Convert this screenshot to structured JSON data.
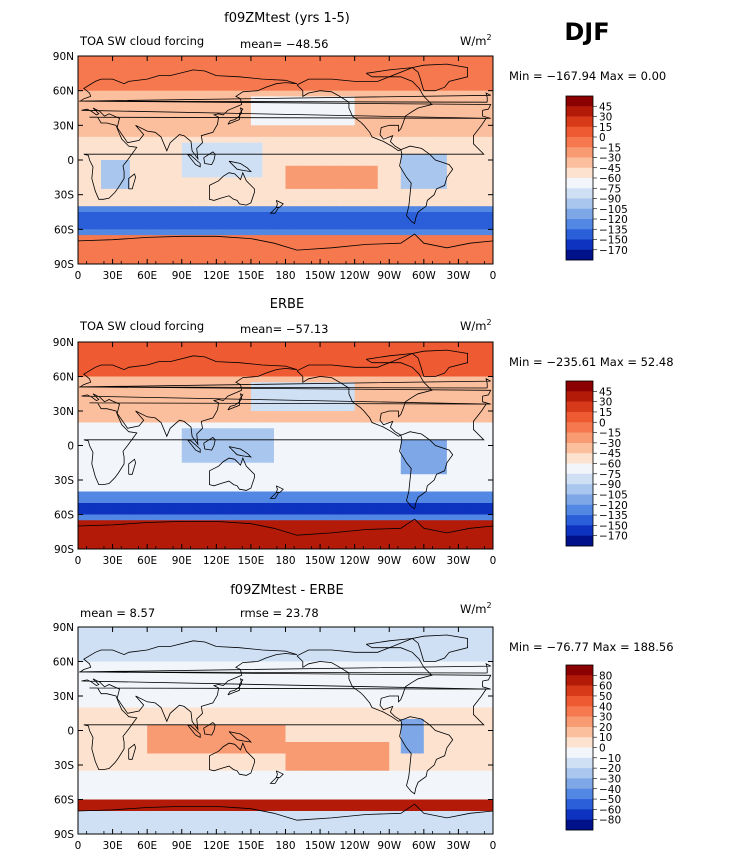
{
  "season": "DJF",
  "y_ticks": [
    "90N",
    "60N",
    "30N",
    "0",
    "30S",
    "60S",
    "90S"
  ],
  "x_ticks": [
    "0",
    "30E",
    "60E",
    "90E",
    "120E",
    "150E",
    "180",
    "150W",
    "120W",
    "90W",
    "60W",
    "30W",
    "0"
  ],
  "panels": [
    {
      "title": "f09ZMtest (yrs 1-5)",
      "left_label": "TOA SW cloud forcing",
      "center_label": "mean=  −48.56",
      "units_base": "W/m",
      "units_sup": "2",
      "minmax": "Min = −167.94  Max =    0.00",
      "colorbar_labels": [
        "45",
        "30",
        "15",
        "0",
        "−15",
        "−30",
        "−45",
        "−60",
        "−75",
        "−90",
        "−105",
        "−120",
        "−135",
        "−150",
        "−170"
      ],
      "colorbar_colors": [
        "#8b0000",
        "#b41a08",
        "#d73a18",
        "#ee5a32",
        "#f5784e",
        "#f89a72",
        "#fbbf9e",
        "#fde3cf",
        "#f2f6fb",
        "#cfe0f5",
        "#a9c6ee",
        "#7ea7e8",
        "#5287e3",
        "#2a5fd9",
        "#0d33c0",
        "#00118a"
      ]
    },
    {
      "title": "ERBE",
      "left_label": "TOA SW cloud forcing",
      "center_label": "mean=  −57.13",
      "units_base": "W/m",
      "units_sup": "2",
      "minmax": "Min = −235.61  Max =   52.48",
      "colorbar_labels": [
        "45",
        "30",
        "15",
        "0",
        "−15",
        "−30",
        "−45",
        "−60",
        "−75",
        "−90",
        "−105",
        "−120",
        "−135",
        "−150",
        "−170"
      ],
      "colorbar_colors": [
        "#8b0000",
        "#b41a08",
        "#d73a18",
        "#ee5a32",
        "#f5784e",
        "#f89a72",
        "#fbbf9e",
        "#fde3cf",
        "#f2f6fb",
        "#cfe0f5",
        "#a9c6ee",
        "#7ea7e8",
        "#5287e3",
        "#2a5fd9",
        "#0d33c0",
        "#00118a"
      ]
    },
    {
      "title": "f09ZMtest - ERBE",
      "left_label": "mean =    8.57",
      "center_label": "rmse =  23.78",
      "units_base": "W/m",
      "units_sup": "2",
      "minmax": "Min = −76.77  Max = 188.56",
      "colorbar_labels": [
        "80",
        "60",
        "50",
        "40",
        "30",
        "20",
        "10",
        "0",
        "−10",
        "−20",
        "−30",
        "−40",
        "−50",
        "−60",
        "−80"
      ],
      "colorbar_colors": [
        "#8b0000",
        "#b41a08",
        "#d73a18",
        "#ee5a32",
        "#f5784e",
        "#f89a72",
        "#fbbf9e",
        "#fde3cf",
        "#f2f6fb",
        "#cfe0f5",
        "#a9c6ee",
        "#7ea7e8",
        "#5287e3",
        "#2a5fd9",
        "#0d33c0",
        "#00118a"
      ]
    }
  ]
}
